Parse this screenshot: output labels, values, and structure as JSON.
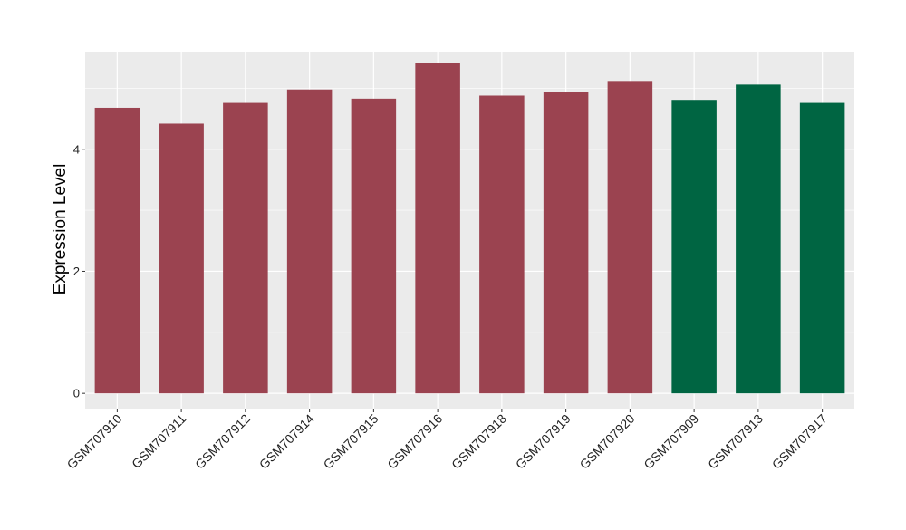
{
  "chart_data": {
    "type": "bar",
    "title": "",
    "xlabel": "",
    "ylabel": "Expression Level",
    "ylim": [
      -0.25,
      5.6
    ],
    "yticks": [
      0,
      2,
      4
    ],
    "ytick_labels": [
      "0",
      "2",
      "4"
    ],
    "grid": true,
    "categories": [
      "GSM707910",
      "GSM707911",
      "GSM707912",
      "GSM707914",
      "GSM707915",
      "GSM707916",
      "GSM707918",
      "GSM707919",
      "GSM707920",
      "GSM707909",
      "GSM707913",
      "GSM707917"
    ],
    "values": [
      4.68,
      4.42,
      4.76,
      4.98,
      4.83,
      5.42,
      4.88,
      4.94,
      5.12,
      4.81,
      5.06,
      4.76
    ],
    "bar_colors": [
      "#9b4350",
      "#9b4350",
      "#9b4350",
      "#9b4350",
      "#9b4350",
      "#9b4350",
      "#9b4350",
      "#9b4350",
      "#9b4350",
      "#006542",
      "#006542",
      "#006542"
    ],
    "panel_background": "#ebebeb",
    "grid_color": "#ffffff"
  }
}
